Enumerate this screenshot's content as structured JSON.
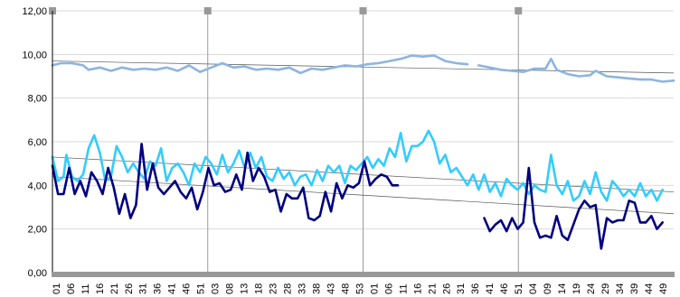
{
  "chart_data": {
    "type": "line",
    "title": "",
    "xlabel": "",
    "ylabel": "",
    "ylim": [
      0,
      12
    ],
    "y_ticks": [
      "0,00",
      "2,00",
      "4,00",
      "6,00",
      "8,00",
      "10,00",
      "12,00"
    ],
    "x_tick_labels": [
      "01",
      "06",
      "11",
      "16",
      "21",
      "26",
      "31",
      "36",
      "41",
      "46",
      "51",
      "03",
      "08",
      "13",
      "18",
      "23",
      "28",
      "33",
      "38",
      "43",
      "48",
      "53",
      "01",
      "06",
      "11",
      "16",
      "21",
      "26",
      "31",
      "36",
      "41",
      "46",
      "51",
      "04",
      "09",
      "14",
      "19",
      "24",
      "29",
      "34",
      "39",
      "44",
      "49"
    ],
    "grid": true,
    "legend": "none",
    "block_separators": 4,
    "colors": {
      "series_a": "#8db4e2",
      "series_b": "#33ccff",
      "series_c": "#000080",
      "trend": "#555555",
      "axis_bar": "#999999",
      "marker": "#999999"
    },
    "series": [
      {
        "key": "series_a",
        "points_per_segment": 3,
        "segments": [
          [
            [
              1,
              9.5
            ],
            [
              4,
              9.6
            ],
            [
              8,
              9.6
            ],
            [
              12,
              9.5
            ],
            [
              14,
              9.3
            ],
            [
              18,
              9.4
            ],
            [
              22,
              9.25
            ],
            [
              26,
              9.4
            ],
            [
              30,
              9.3
            ],
            [
              34,
              9.35
            ],
            [
              38,
              9.3
            ],
            [
              42,
              9.4
            ],
            [
              46,
              9.25
            ],
            [
              50,
              9.5
            ],
            [
              54,
              9.2
            ],
            [
              58,
              9.4
            ],
            [
              62,
              9.6
            ],
            [
              66,
              9.4
            ],
            [
              70,
              9.45
            ],
            [
              74,
              9.3
            ],
            [
              78,
              9.35
            ],
            [
              82,
              9.3
            ],
            [
              86,
              9.4
            ],
            [
              90,
              9.15
            ],
            [
              94,
              9.35
            ],
            [
              98,
              9.3
            ],
            [
              102,
              9.4
            ],
            [
              106,
              9.5
            ],
            [
              110,
              9.45
            ],
            [
              114,
              9.55
            ],
            [
              118,
              9.6
            ],
            [
              122,
              9.7
            ],
            [
              126,
              9.8
            ],
            [
              130,
              9.95
            ],
            [
              134,
              9.9
            ],
            [
              138,
              9.95
            ],
            [
              142,
              9.7
            ],
            [
              146,
              9.6
            ],
            [
              150,
              9.55
            ]
          ],
          [
            [
              154,
              9.5
            ],
            [
              158,
              9.4
            ],
            [
              162,
              9.3
            ],
            [
              166,
              9.25
            ],
            [
              170,
              9.2
            ],
            [
              174,
              9.35
            ],
            [
              178,
              9.35
            ],
            [
              180,
              9.8
            ],
            [
              182,
              9.3
            ],
            [
              186,
              9.1
            ],
            [
              190,
              9.0
            ],
            [
              194,
              9.05
            ],
            [
              196,
              9.25
            ],
            [
              200,
              9.0
            ],
            [
              204,
              8.95
            ],
            [
              208,
              8.9
            ],
            [
              212,
              8.85
            ],
            [
              216,
              8.85
            ],
            [
              220,
              8.75
            ],
            [
              224,
              8.8
            ]
          ]
        ]
      },
      {
        "key": "series_b",
        "segments": [
          [
            [
              1,
              5.3
            ],
            [
              3,
              4.2
            ],
            [
              5,
              4.4
            ],
            [
              6,
              5.4
            ],
            [
              8,
              4.4
            ],
            [
              10,
              4.2
            ],
            [
              12,
              4.5
            ],
            [
              14,
              5.7
            ],
            [
              16,
              6.3
            ],
            [
              18,
              5.5
            ],
            [
              20,
              4.2
            ],
            [
              22,
              4.4
            ],
            [
              24,
              5.8
            ],
            [
              26,
              5.3
            ],
            [
              28,
              4.6
            ],
            [
              30,
              5.0
            ],
            [
              32,
              4.6
            ],
            [
              34,
              4.3
            ],
            [
              36,
              5.1
            ],
            [
              38,
              4.9
            ],
            [
              40,
              5.7
            ],
            [
              42,
              4.2
            ],
            [
              44,
              4.8
            ],
            [
              46,
              5.0
            ],
            [
              48,
              4.6
            ],
            [
              50,
              4.0
            ],
            [
              52,
              5.0
            ],
            [
              54,
              4.6
            ],
            [
              56,
              5.3
            ],
            [
              58,
              5.0
            ],
            [
              60,
              4.5
            ],
            [
              62,
              5.4
            ],
            [
              64,
              4.6
            ],
            [
              66,
              5.0
            ],
            [
              68,
              5.6
            ],
            [
              70,
              4.8
            ],
            [
              72,
              5.5
            ],
            [
              74,
              4.8
            ],
            [
              76,
              5.3
            ],
            [
              78,
              4.4
            ],
            [
              80,
              4.2
            ],
            [
              82,
              4.8
            ],
            [
              84,
              4.3
            ],
            [
              86,
              4.6
            ],
            [
              88,
              4.0
            ],
            [
              90,
              4.4
            ],
            [
              92,
              4.5
            ],
            [
              94,
              4.0
            ],
            [
              96,
              4.7
            ],
            [
              98,
              4.2
            ],
            [
              100,
              4.9
            ],
            [
              102,
              4.6
            ],
            [
              104,
              4.9
            ],
            [
              106,
              4.1
            ],
            [
              108,
              4.9
            ],
            [
              110,
              4.7
            ],
            [
              112,
              5.0
            ],
            [
              114,
              5.3
            ],
            [
              116,
              4.8
            ],
            [
              118,
              5.2
            ],
            [
              120,
              4.9
            ],
            [
              122,
              5.7
            ],
            [
              124,
              5.3
            ],
            [
              126,
              6.4
            ],
            [
              128,
              5.1
            ],
            [
              130,
              5.8
            ],
            [
              132,
              5.8
            ],
            [
              134,
              6.0
            ],
            [
              136,
              6.5
            ],
            [
              138,
              6.0
            ],
            [
              140,
              5.0
            ],
            [
              142,
              5.4
            ],
            [
              144,
              4.6
            ],
            [
              146,
              4.8
            ],
            [
              148,
              4.4
            ],
            [
              150,
              4.0
            ],
            [
              152,
              4.5
            ],
            [
              154,
              3.8
            ],
            [
              156,
              4.5
            ],
            [
              158,
              3.7
            ],
            [
              160,
              4.1
            ],
            [
              162,
              3.5
            ],
            [
              164,
              4.3
            ],
            [
              166,
              4.0
            ],
            [
              168,
              3.8
            ],
            [
              170,
              4.1
            ],
            [
              172,
              3.6
            ],
            [
              174,
              4.0
            ],
            [
              176,
              3.8
            ],
            [
              178,
              3.7
            ],
            [
              180,
              5.4
            ],
            [
              182,
              4.0
            ],
            [
              184,
              3.6
            ],
            [
              186,
              4.2
            ],
            [
              188,
              3.3
            ],
            [
              190,
              3.5
            ],
            [
              192,
              4.2
            ],
            [
              194,
              3.6
            ],
            [
              196,
              4.6
            ],
            [
              198,
              3.7
            ],
            [
              200,
              3.3
            ],
            [
              202,
              4.2
            ],
            [
              204,
              3.9
            ],
            [
              206,
              3.5
            ],
            [
              208,
              3.8
            ],
            [
              210,
              3.5
            ],
            [
              212,
              4.1
            ],
            [
              214,
              3.5
            ],
            [
              216,
              3.8
            ],
            [
              218,
              3.3
            ],
            [
              220,
              3.8
            ]
          ]
        ]
      },
      {
        "key": "series_c",
        "segments": [
          [
            [
              1,
              4.9
            ],
            [
              3,
              3.6
            ],
            [
              5,
              3.6
            ],
            [
              7,
              4.8
            ],
            [
              9,
              3.6
            ],
            [
              11,
              4.2
            ],
            [
              13,
              3.5
            ],
            [
              15,
              4.6
            ],
            [
              17,
              4.2
            ],
            [
              19,
              3.6
            ],
            [
              21,
              4.8
            ],
            [
              23,
              3.9
            ],
            [
              25,
              2.7
            ],
            [
              27,
              3.6
            ],
            [
              29,
              2.5
            ],
            [
              31,
              3.1
            ],
            [
              33,
              5.9
            ],
            [
              35,
              3.8
            ],
            [
              37,
              5.0
            ],
            [
              39,
              3.9
            ],
            [
              41,
              3.6
            ],
            [
              43,
              3.9
            ],
            [
              45,
              4.2
            ],
            [
              47,
              3.7
            ],
            [
              49,
              3.4
            ],
            [
              51,
              3.9
            ],
            [
              53,
              2.9
            ],
            [
              55,
              3.7
            ],
            [
              57,
              4.8
            ],
            [
              59,
              4.0
            ],
            [
              61,
              4.1
            ],
            [
              63,
              3.7
            ],
            [
              65,
              3.8
            ],
            [
              67,
              4.5
            ],
            [
              69,
              3.8
            ],
            [
              71,
              5.5
            ],
            [
              73,
              4.2
            ],
            [
              75,
              4.8
            ],
            [
              77,
              4.4
            ],
            [
              79,
              3.7
            ],
            [
              81,
              3.8
            ],
            [
              83,
              2.8
            ],
            [
              85,
              3.6
            ],
            [
              87,
              3.4
            ],
            [
              89,
              3.4
            ],
            [
              91,
              3.9
            ],
            [
              93,
              2.5
            ],
            [
              95,
              2.4
            ],
            [
              97,
              2.6
            ],
            [
              99,
              3.7
            ],
            [
              101,
              2.8
            ],
            [
              103,
              4.1
            ],
            [
              105,
              3.4
            ],
            [
              107,
              4.0
            ],
            [
              109,
              3.9
            ],
            [
              111,
              4.1
            ],
            [
              113,
              5.1
            ],
            [
              115,
              4.0
            ],
            [
              117,
              4.3
            ],
            [
              119,
              4.5
            ],
            [
              121,
              4.4
            ],
            [
              123,
              4.0
            ],
            [
              125,
              4.0
            ]
          ],
          [
            [
              156,
              2.5
            ],
            [
              158,
              1.9
            ],
            [
              160,
              2.2
            ],
            [
              162,
              2.4
            ],
            [
              164,
              1.9
            ],
            [
              166,
              2.5
            ],
            [
              168,
              2.0
            ],
            [
              170,
              2.3
            ],
            [
              172,
              4.8
            ],
            [
              174,
              2.3
            ],
            [
              176,
              1.6
            ],
            [
              178,
              1.7
            ],
            [
              180,
              1.6
            ],
            [
              182,
              2.6
            ],
            [
              184,
              1.7
            ],
            [
              186,
              1.5
            ],
            [
              188,
              2.2
            ],
            [
              190,
              2.9
            ],
            [
              192,
              3.3
            ],
            [
              194,
              3.0
            ],
            [
              196,
              3.1
            ],
            [
              198,
              1.1
            ],
            [
              200,
              2.5
            ],
            [
              202,
              2.3
            ],
            [
              204,
              2.4
            ],
            [
              206,
              2.4
            ],
            [
              208,
              3.3
            ],
            [
              210,
              3.2
            ],
            [
              212,
              2.3
            ],
            [
              214,
              2.3
            ],
            [
              216,
              2.6
            ],
            [
              218,
              2.0
            ],
            [
              220,
              2.3
            ]
          ]
        ]
      }
    ],
    "trend_lines": [
      [
        [
          1,
          9.7
        ],
        [
          224,
          9.15
        ]
      ],
      [
        [
          1,
          5.3
        ],
        [
          224,
          3.7
        ]
      ],
      [
        [
          1,
          4.4
        ],
        [
          224,
          2.7
        ]
      ]
    ]
  }
}
